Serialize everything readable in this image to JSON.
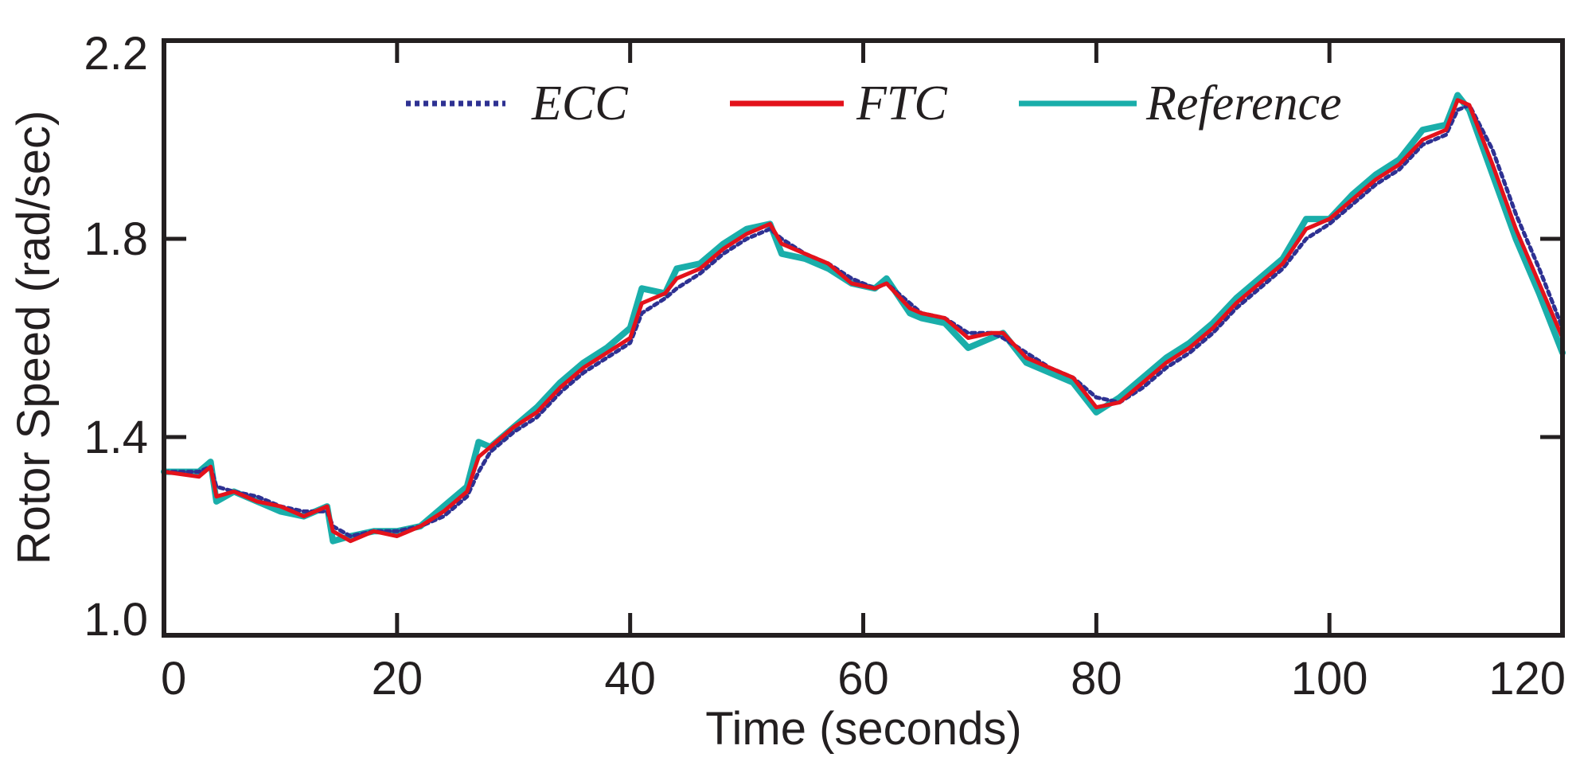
{
  "chart_data": {
    "type": "line",
    "title": "",
    "xlabel": "Time (seconds)",
    "ylabel": "Rotor Speed (rad/sec)",
    "xlim": [
      0,
      120
    ],
    "ylim": [
      1.0,
      2.2
    ],
    "x_ticks": [
      0,
      20,
      40,
      60,
      80,
      100,
      120
    ],
    "x_tick_labels": [
      "0",
      "20",
      "40",
      "60",
      "80",
      "100",
      "120"
    ],
    "y_ticks": [
      1.0,
      1.4,
      1.8,
      2.2
    ],
    "y_tick_labels": [
      "1.0",
      "1.4",
      "1.8",
      "2.2"
    ],
    "grid": false,
    "legend_position": "top",
    "series": [
      {
        "name": "Reference",
        "color": "#1aaeaa",
        "style": "solid",
        "x": [
          0,
          3,
          4,
          4.5,
          6,
          8,
          10,
          12,
          14,
          14.5,
          16,
          18,
          20,
          22,
          24,
          26,
          27,
          28,
          30,
          32,
          34,
          36,
          38,
          40,
          41,
          43,
          44,
          46,
          48,
          50,
          52,
          53,
          55,
          57,
          59,
          61,
          62,
          64,
          65,
          67,
          69,
          71,
          72,
          74,
          76,
          78,
          80,
          82,
          84,
          86,
          88,
          90,
          92,
          94,
          96,
          98,
          100,
          102,
          104,
          106,
          108,
          110,
          111,
          112,
          114,
          116,
          118,
          120
        ],
        "y": [
          1.33,
          1.33,
          1.35,
          1.27,
          1.29,
          1.27,
          1.25,
          1.24,
          1.26,
          1.19,
          1.2,
          1.21,
          1.21,
          1.22,
          1.26,
          1.3,
          1.39,
          1.38,
          1.42,
          1.46,
          1.51,
          1.55,
          1.58,
          1.62,
          1.7,
          1.69,
          1.74,
          1.75,
          1.79,
          1.82,
          1.83,
          1.77,
          1.76,
          1.74,
          1.71,
          1.7,
          1.72,
          1.65,
          1.64,
          1.63,
          1.58,
          1.6,
          1.61,
          1.55,
          1.53,
          1.51,
          1.45,
          1.48,
          1.52,
          1.56,
          1.59,
          1.63,
          1.68,
          1.72,
          1.76,
          1.84,
          1.84,
          1.89,
          1.93,
          1.96,
          2.02,
          2.03,
          2.09,
          2.06,
          1.93,
          1.8,
          1.69,
          1.57
        ]
      },
      {
        "name": "ECC",
        "color": "#2e3192",
        "style": "dotted",
        "x": [
          0,
          3,
          4,
          4.5,
          6,
          8,
          10,
          12,
          14,
          14.5,
          16,
          18,
          20,
          22,
          24,
          26,
          27,
          28,
          30,
          32,
          34,
          36,
          38,
          40,
          41,
          43,
          44,
          46,
          48,
          50,
          52,
          53,
          55,
          57,
          59,
          61,
          62,
          64,
          65,
          67,
          69,
          71,
          72,
          74,
          76,
          78,
          80,
          82,
          84,
          86,
          88,
          90,
          92,
          94,
          96,
          98,
          100,
          102,
          104,
          106,
          108,
          110,
          111,
          112,
          114,
          116,
          118,
          120
        ],
        "y": [
          1.33,
          1.33,
          1.34,
          1.3,
          1.29,
          1.28,
          1.26,
          1.25,
          1.25,
          1.22,
          1.2,
          1.21,
          1.21,
          1.22,
          1.24,
          1.28,
          1.33,
          1.37,
          1.41,
          1.44,
          1.49,
          1.53,
          1.56,
          1.59,
          1.65,
          1.68,
          1.7,
          1.73,
          1.77,
          1.8,
          1.82,
          1.8,
          1.77,
          1.75,
          1.72,
          1.7,
          1.71,
          1.67,
          1.65,
          1.64,
          1.61,
          1.61,
          1.6,
          1.57,
          1.54,
          1.52,
          1.48,
          1.47,
          1.5,
          1.54,
          1.57,
          1.61,
          1.66,
          1.7,
          1.74,
          1.8,
          1.83,
          1.87,
          1.91,
          1.94,
          1.99,
          2.01,
          2.06,
          2.07,
          1.98,
          1.85,
          1.74,
          1.62
        ]
      },
      {
        "name": "FTC",
        "color": "#e3121b",
        "style": "solid",
        "x": [
          0,
          3,
          4,
          4.5,
          6,
          8,
          10,
          12,
          14,
          14.5,
          16,
          18,
          20,
          22,
          24,
          26,
          27,
          28,
          30,
          32,
          34,
          36,
          38,
          40,
          41,
          43,
          44,
          46,
          48,
          50,
          52,
          53,
          55,
          57,
          59,
          61,
          62,
          64,
          65,
          67,
          69,
          71,
          72,
          74,
          76,
          78,
          80,
          82,
          84,
          86,
          88,
          90,
          92,
          94,
          96,
          98,
          100,
          102,
          104,
          106,
          108,
          110,
          111,
          112,
          114,
          116,
          118,
          120
        ],
        "y": [
          1.33,
          1.32,
          1.34,
          1.28,
          1.29,
          1.27,
          1.26,
          1.24,
          1.26,
          1.21,
          1.19,
          1.21,
          1.2,
          1.22,
          1.25,
          1.29,
          1.36,
          1.38,
          1.42,
          1.45,
          1.5,
          1.54,
          1.57,
          1.6,
          1.67,
          1.69,
          1.72,
          1.74,
          1.78,
          1.81,
          1.83,
          1.79,
          1.77,
          1.75,
          1.71,
          1.7,
          1.71,
          1.66,
          1.65,
          1.64,
          1.6,
          1.61,
          1.61,
          1.56,
          1.54,
          1.52,
          1.46,
          1.47,
          1.51,
          1.55,
          1.58,
          1.62,
          1.67,
          1.71,
          1.75,
          1.82,
          1.84,
          1.88,
          1.92,
          1.95,
          2.0,
          2.02,
          2.08,
          2.07,
          1.95,
          1.82,
          1.71,
          1.6
        ]
      }
    ]
  },
  "legend": {
    "items": [
      {
        "label": "ECC",
        "color": "#2e3192",
        "style": "dotted"
      },
      {
        "label": "FTC",
        "color": "#e3121b",
        "style": "solid"
      },
      {
        "label": "Reference",
        "color": "#1aaeaa",
        "style": "solid"
      }
    ]
  }
}
